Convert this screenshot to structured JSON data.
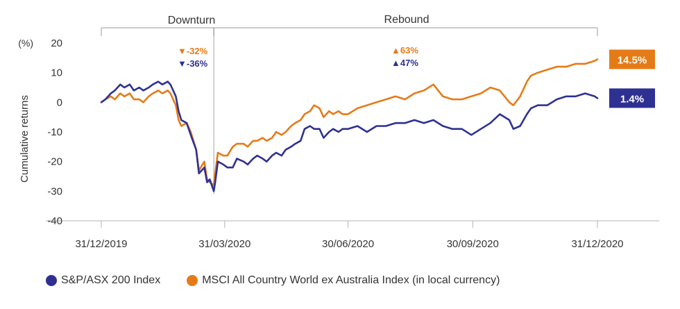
{
  "chart_data": {
    "type": "line",
    "ylabel": "Cumulative returns",
    "yunit": "(%)",
    "ylim": [
      -40,
      20
    ],
    "yticks": [
      20,
      10,
      0,
      -10,
      -20,
      -30,
      -40
    ],
    "xlim": [
      "2019-12-31",
      "2021-02-15"
    ],
    "xticks": [
      "31/12/2019",
      "31/03/2020",
      "30/06/2020",
      "30/09/2020",
      "31/12/2020"
    ],
    "xtick_dates": [
      "2019-12-31",
      "2020-03-31",
      "2020-06-30",
      "2020-09-30",
      "2020-12-31"
    ],
    "grid": false,
    "legend_position": "bottom-left",
    "periods": [
      {
        "label": "Downturn",
        "start": "2019-12-31",
        "end": "2020-03-23"
      },
      {
        "label": "Rebound",
        "start": "2020-03-23",
        "end": "2020-12-31"
      }
    ],
    "annotations": [
      {
        "text": "▼-32%",
        "series": "MSCI All Country World ex Australia Index (in local currency)",
        "period": "Downturn"
      },
      {
        "text": "▼-36%",
        "series": "S&P/ASX 200 Index",
        "period": "Downturn"
      },
      {
        "text": "▲63%",
        "series": "MSCI All Country World ex Australia Index (in local currency)",
        "period": "Rebound"
      },
      {
        "text": "▲47%",
        "series": "S&P/ASX 200 Index",
        "period": "Rebound"
      }
    ],
    "end_labels": [
      {
        "text": "14.5%",
        "value": 14.5,
        "series": "MSCI All Country World ex Australia Index (in local currency)"
      },
      {
        "text": "1.4%",
        "value": 1.4,
        "series": "S&P/ASX 200 Index"
      }
    ],
    "series": [
      {
        "name": "S&P/ASX 200 Index",
        "color": "#2e3191",
        "x": [
          "2019-12-31",
          "2020-01-03",
          "2020-01-07",
          "2020-01-10",
          "2020-01-14",
          "2020-01-17",
          "2020-01-21",
          "2020-01-24",
          "2020-01-28",
          "2020-01-31",
          "2020-02-04",
          "2020-02-07",
          "2020-02-11",
          "2020-02-14",
          "2020-02-18",
          "2020-02-20",
          "2020-02-21",
          "2020-02-24",
          "2020-02-26",
          "2020-02-28",
          "2020-03-03",
          "2020-03-06",
          "2020-03-10",
          "2020-03-12",
          "2020-03-16",
          "2020-03-18",
          "2020-03-20",
          "2020-03-23",
          "2020-03-24",
          "2020-03-26",
          "2020-03-30",
          "2020-04-02",
          "2020-04-06",
          "2020-04-09",
          "2020-04-14",
          "2020-04-17",
          "2020-04-21",
          "2020-04-24",
          "2020-04-28",
          "2020-05-01",
          "2020-05-05",
          "2020-05-08",
          "2020-05-12",
          "2020-05-15",
          "2020-05-19",
          "2020-05-22",
          "2020-05-26",
          "2020-05-29",
          "2020-06-02",
          "2020-06-05",
          "2020-06-09",
          "2020-06-12",
          "2020-06-16",
          "2020-06-19",
          "2020-06-23",
          "2020-06-26",
          "2020-06-30",
          "2020-07-07",
          "2020-07-14",
          "2020-07-21",
          "2020-07-28",
          "2020-08-04",
          "2020-08-11",
          "2020-08-18",
          "2020-08-25",
          "2020-09-01",
          "2020-09-08",
          "2020-09-15",
          "2020-09-22",
          "2020-09-29",
          "2020-10-06",
          "2020-10-13",
          "2020-10-20",
          "2020-10-27",
          "2020-10-30",
          "2020-11-04",
          "2020-11-09",
          "2020-11-12",
          "2020-11-17",
          "2020-11-24",
          "2020-12-01",
          "2020-12-08",
          "2020-12-15",
          "2020-12-22",
          "2020-12-29",
          "2020-12-31"
        ],
        "values": [
          0,
          1,
          3,
          4,
          6,
          5,
          6,
          4,
          5,
          4,
          5,
          6,
          7,
          6,
          7,
          6,
          5,
          2,
          -3,
          -6,
          -7,
          -11,
          -16,
          -24,
          -22,
          -27,
          -26,
          -30,
          -27,
          -20,
          -21,
          -22,
          -22,
          -19,
          -20,
          -21,
          -19,
          -18,
          -19,
          -20,
          -18,
          -17,
          -18,
          -16,
          -15,
          -14,
          -13,
          -9,
          -8,
          -9,
          -9,
          -12,
          -10,
          -9,
          -10,
          -9,
          -9,
          -8,
          -10,
          -8,
          -8,
          -7,
          -7,
          -6,
          -7,
          -6,
          -8,
          -9,
          -9,
          -11,
          -9,
          -7,
          -4,
          -6,
          -9,
          -8,
          -4,
          -2,
          -1,
          -1,
          1,
          2,
          2,
          3,
          2,
          1.4
        ]
      },
      {
        "name": "MSCI All Country World ex Australia Index (in local currency)",
        "color": "#e57b17",
        "x": [
          "2019-12-31",
          "2020-01-03",
          "2020-01-07",
          "2020-01-10",
          "2020-01-14",
          "2020-01-17",
          "2020-01-21",
          "2020-01-24",
          "2020-01-28",
          "2020-01-31",
          "2020-02-04",
          "2020-02-07",
          "2020-02-11",
          "2020-02-14",
          "2020-02-18",
          "2020-02-20",
          "2020-02-21",
          "2020-02-24",
          "2020-02-26",
          "2020-02-28",
          "2020-03-03",
          "2020-03-06",
          "2020-03-10",
          "2020-03-12",
          "2020-03-16",
          "2020-03-18",
          "2020-03-20",
          "2020-03-23",
          "2020-03-24",
          "2020-03-26",
          "2020-03-30",
          "2020-04-02",
          "2020-04-06",
          "2020-04-09",
          "2020-04-14",
          "2020-04-17",
          "2020-04-21",
          "2020-04-24",
          "2020-04-28",
          "2020-05-01",
          "2020-05-05",
          "2020-05-08",
          "2020-05-12",
          "2020-05-15",
          "2020-05-19",
          "2020-05-22",
          "2020-05-26",
          "2020-05-29",
          "2020-06-02",
          "2020-06-05",
          "2020-06-09",
          "2020-06-12",
          "2020-06-16",
          "2020-06-19",
          "2020-06-23",
          "2020-06-26",
          "2020-06-30",
          "2020-07-07",
          "2020-07-14",
          "2020-07-21",
          "2020-07-28",
          "2020-08-04",
          "2020-08-11",
          "2020-08-18",
          "2020-08-25",
          "2020-09-01",
          "2020-09-08",
          "2020-09-15",
          "2020-09-22",
          "2020-09-29",
          "2020-10-06",
          "2020-10-13",
          "2020-10-20",
          "2020-10-27",
          "2020-10-30",
          "2020-11-04",
          "2020-11-09",
          "2020-11-12",
          "2020-11-17",
          "2020-11-24",
          "2020-12-01",
          "2020-12-08",
          "2020-12-15",
          "2020-12-22",
          "2020-12-29",
          "2020-12-31"
        ],
        "values": [
          0,
          1,
          2,
          1,
          3,
          2,
          3,
          1,
          1,
          0,
          2,
          3,
          4,
          3,
          4,
          3,
          2,
          -1,
          -6,
          -8,
          -7,
          -10,
          -16,
          -23,
          -20,
          -26,
          -27,
          -28,
          -24,
          -17,
          -18,
          -18,
          -15,
          -14,
          -14,
          -15,
          -13,
          -13,
          -12,
          -13,
          -12,
          -10,
          -11,
          -10,
          -8,
          -7,
          -6,
          -4,
          -3,
          -1,
          -2,
          -5,
          -3,
          -4,
          -3,
          -4,
          -4,
          -2,
          -1,
          0,
          1,
          2,
          1,
          3,
          4,
          6,
          2,
          1,
          1,
          2,
          3,
          5,
          4,
          0,
          -1,
          2,
          7,
          9,
          10,
          11,
          12,
          12,
          13,
          13,
          14,
          14.5
        ]
      }
    ]
  }
}
